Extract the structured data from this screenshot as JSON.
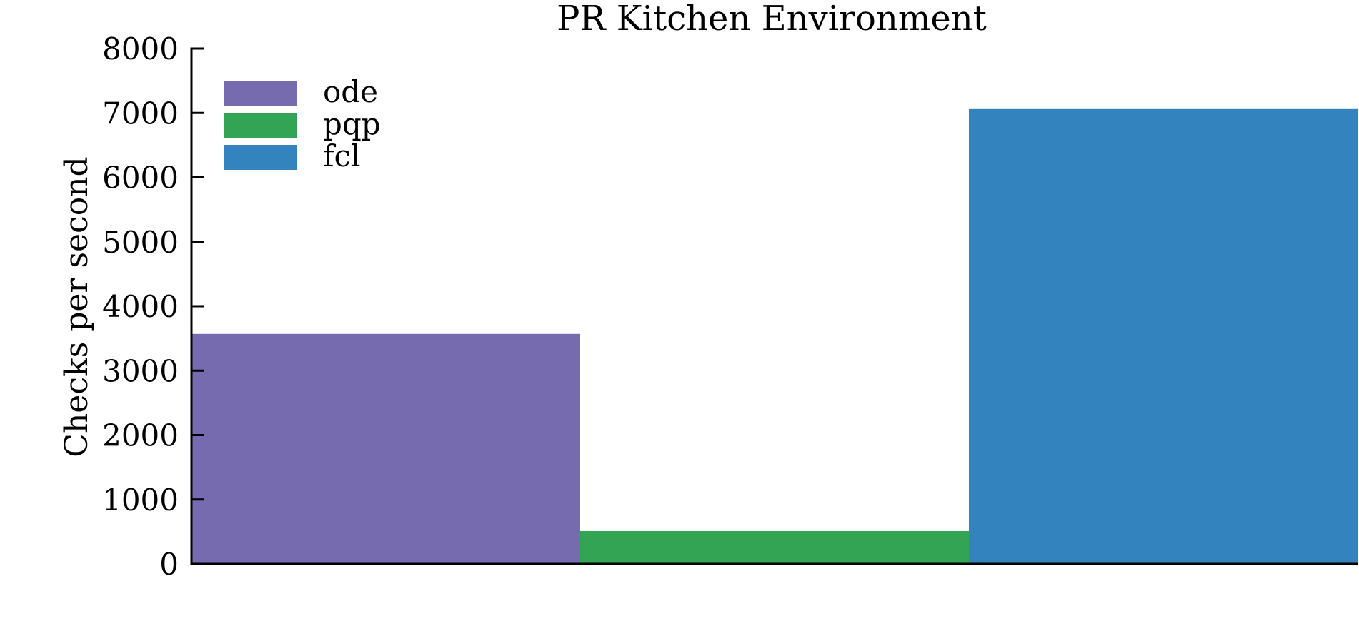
{
  "chart_data": {
    "type": "bar",
    "title": "PR Kitchen Environment",
    "xlabel": "",
    "ylabel": "Checks per second",
    "ylim": [
      0,
      8000
    ],
    "yticks": [
      0,
      1000,
      2000,
      3000,
      4000,
      5000,
      6000,
      7000,
      8000
    ],
    "grid": false,
    "legend_position": "top-left",
    "series": [
      {
        "name": "ode",
        "value": 3570,
        "color": "#766bae"
      },
      {
        "name": "pqp",
        "value": 510,
        "color": "#33a354"
      },
      {
        "name": "fcl",
        "value": 7060,
        "color": "#3383be"
      }
    ]
  }
}
